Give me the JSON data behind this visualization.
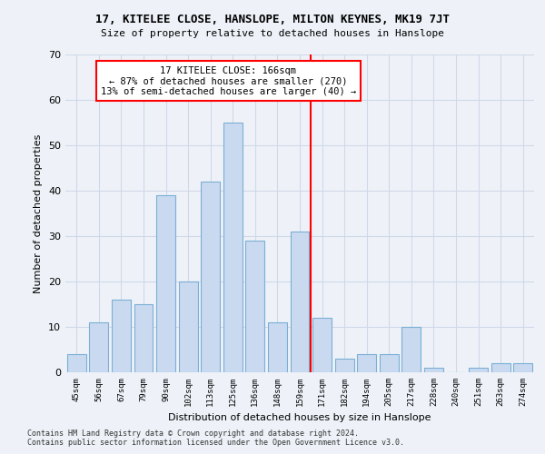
{
  "title1": "17, KITELEE CLOSE, HANSLOPE, MILTON KEYNES, MK19 7JT",
  "title2": "Size of property relative to detached houses in Hanslope",
  "xlabel": "Distribution of detached houses by size in Hanslope",
  "ylabel": "Number of detached properties",
  "categories": [
    "45sqm",
    "56sqm",
    "67sqm",
    "79sqm",
    "90sqm",
    "102sqm",
    "113sqm",
    "125sqm",
    "136sqm",
    "148sqm",
    "159sqm",
    "171sqm",
    "182sqm",
    "194sqm",
    "205sqm",
    "217sqm",
    "228sqm",
    "240sqm",
    "251sqm",
    "263sqm",
    "274sqm"
  ],
  "values": [
    4,
    11,
    16,
    15,
    39,
    20,
    42,
    55,
    29,
    11,
    31,
    12,
    3,
    4,
    4,
    10,
    1,
    0,
    1,
    2,
    2
  ],
  "bar_color": "#c9d9f0",
  "bar_edge_color": "#7bafd4",
  "vline_x_index": 10.5,
  "annotation_text": "17 KITELEE CLOSE: 166sqm\n← 87% of detached houses are smaller (270)\n13% of semi-detached houses are larger (40) →",
  "annotation_box_color": "white",
  "annotation_box_edge_color": "red",
  "vline_color": "red",
  "ylim": [
    0,
    70
  ],
  "yticks": [
    0,
    10,
    20,
    30,
    40,
    50,
    60,
    70
  ],
  "grid_color": "#d0d8e8",
  "background_color": "#eef2f8",
  "footnote1": "Contains HM Land Registry data © Crown copyright and database right 2024.",
  "footnote2": "Contains public sector information licensed under the Open Government Licence v3.0."
}
